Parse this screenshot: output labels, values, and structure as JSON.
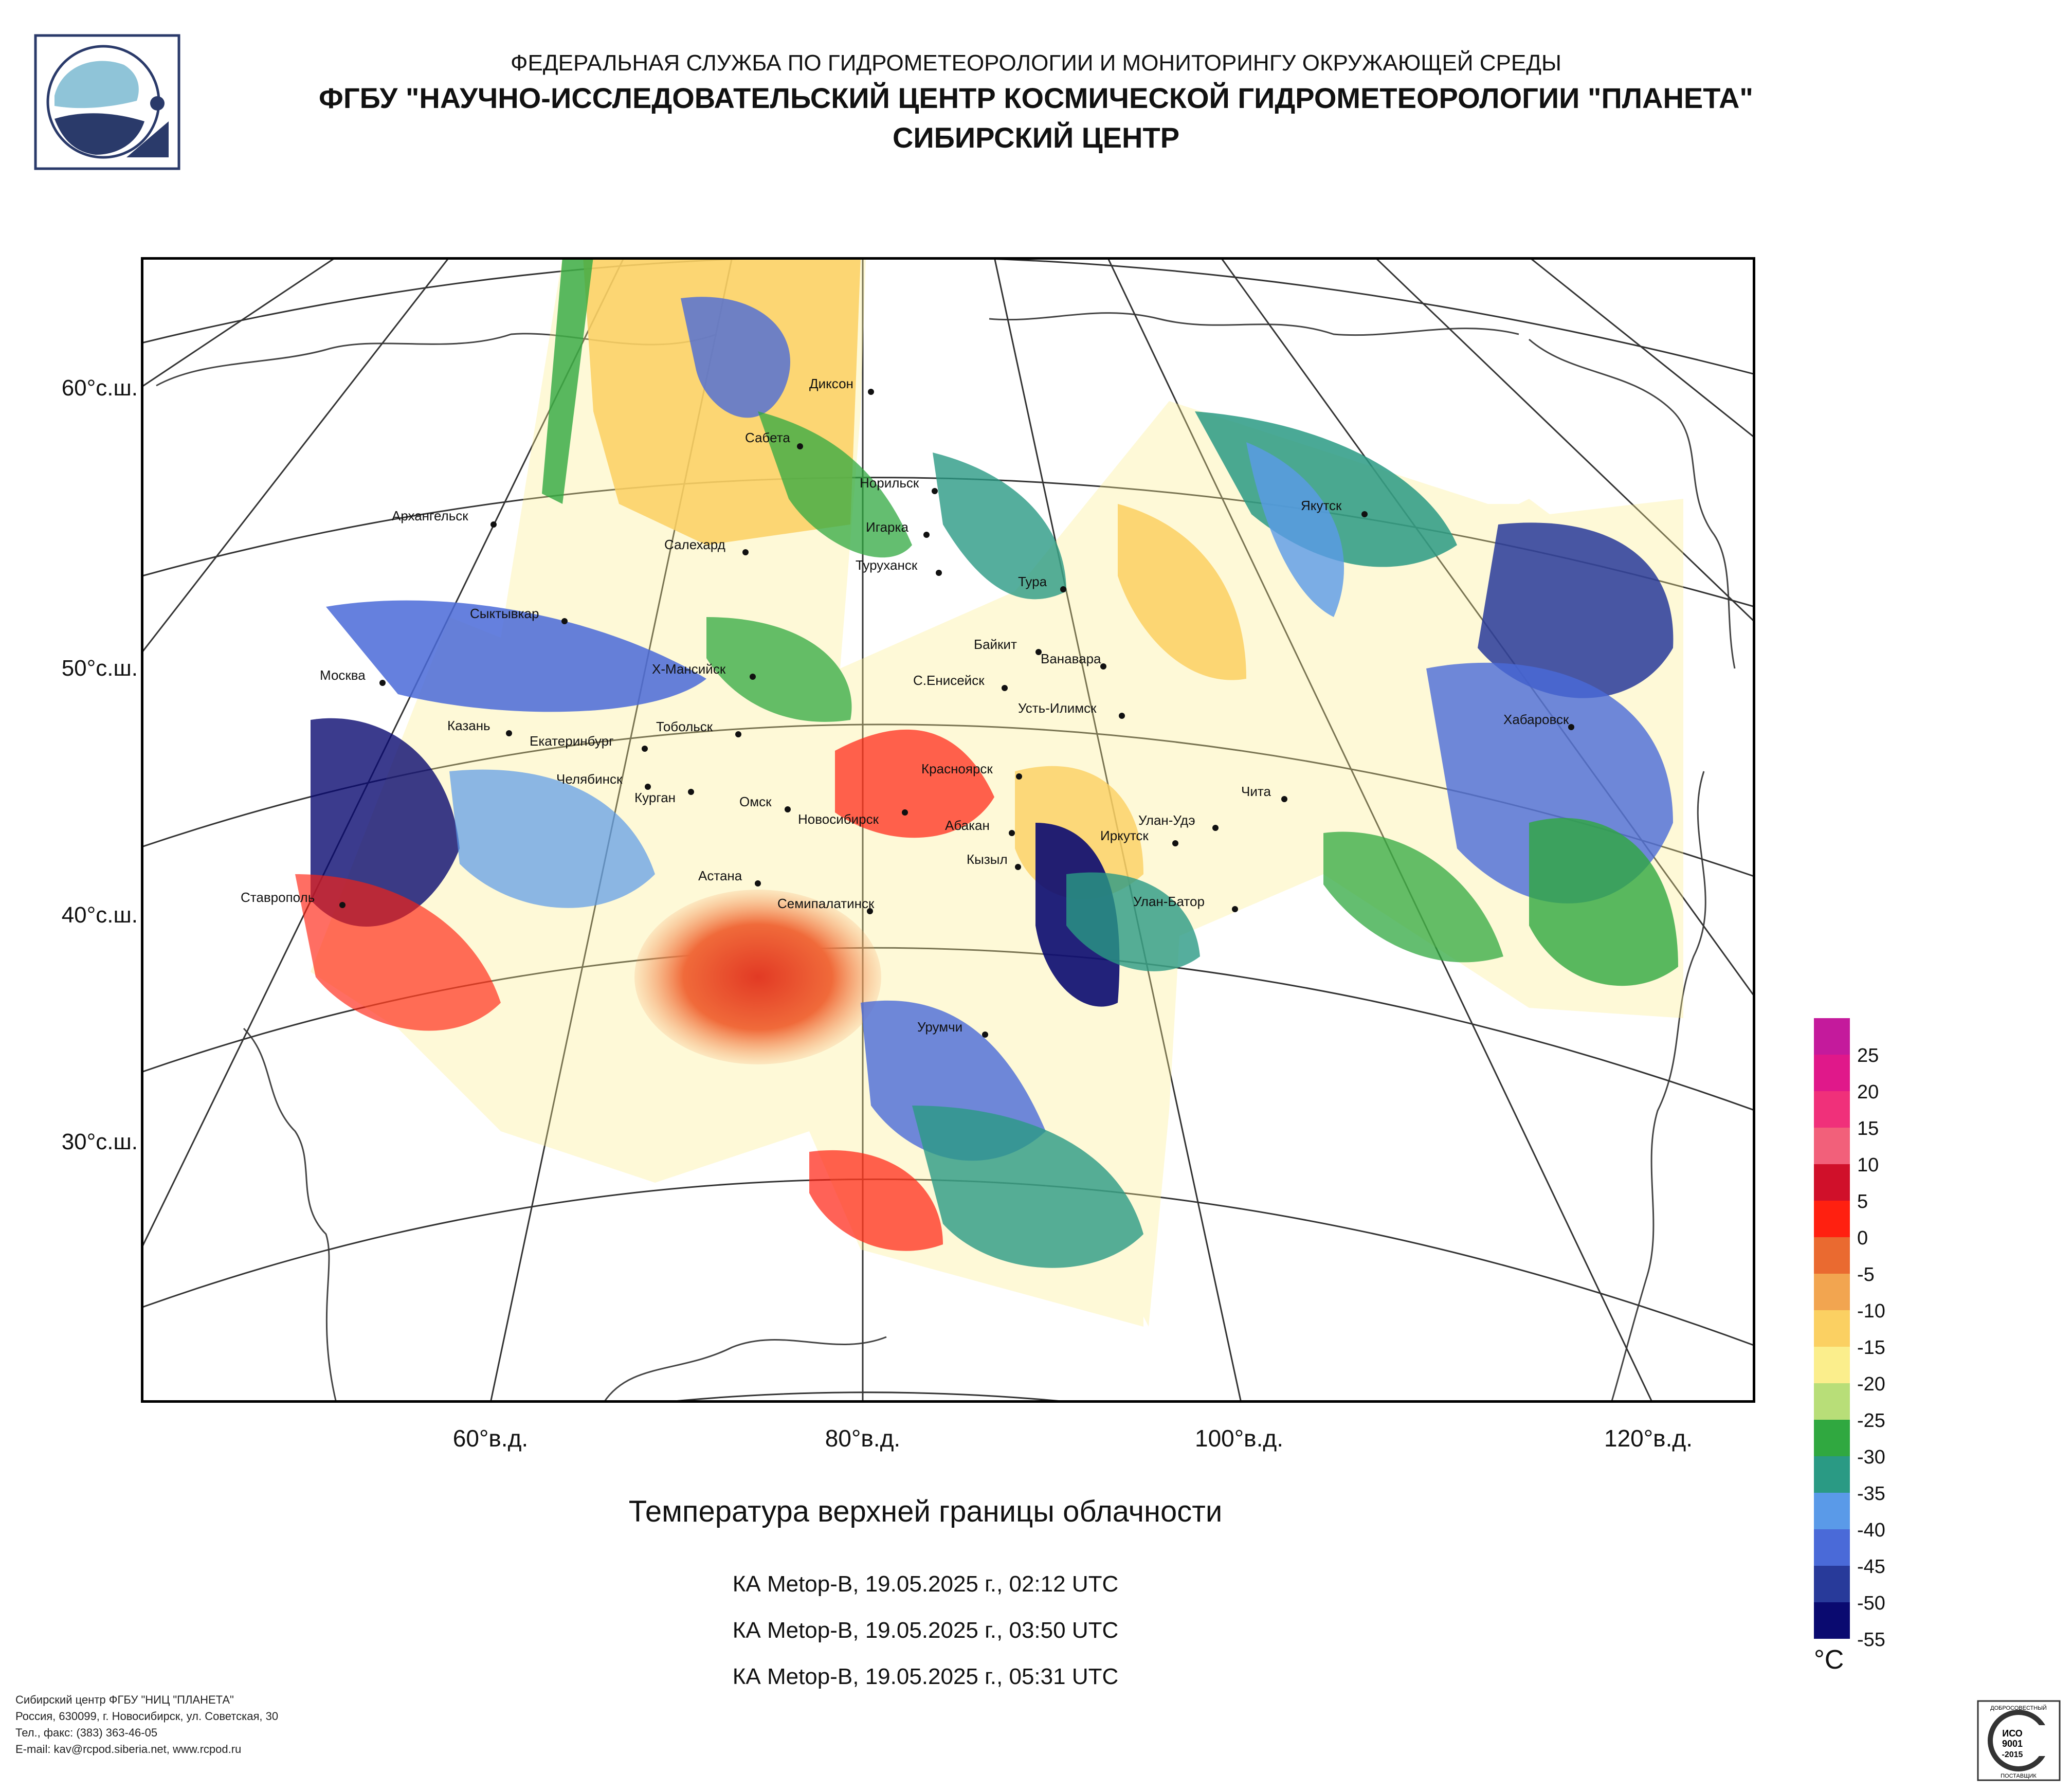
{
  "header": {
    "line1": "ФЕДЕРАЛЬНАЯ СЛУЖБА ПО ГИДРОМЕТЕОРОЛОГИИ И МОНИТОРИНГУ ОКРУЖАЮЩЕЙ СРЕДЫ",
    "line2": "ФГБУ \"НАУЧНО-ИССЛЕДОВАТЕЛЬСКИЙ ЦЕНТР КОСМИЧЕСКОЙ ГИДРОМЕТЕОРОЛОГИИ \"ПЛАНЕТА\"",
    "line3": "СИБИРСКИЙ ЦЕНТР"
  },
  "axes": {
    "lat_labels": [
      "60°с.ш.",
      "50°с.ш.",
      "40°с.ш.",
      "30°с.ш."
    ],
    "lon_labels": [
      "60°в.д.",
      "80°в.д.",
      "100°в.д.",
      "120°в.д."
    ]
  },
  "cities": [
    {
      "name": "Диксон"
    },
    {
      "name": "Сабета"
    },
    {
      "name": "Норильск"
    },
    {
      "name": "Якутск"
    },
    {
      "name": "Архангельск"
    },
    {
      "name": "Игарка"
    },
    {
      "name": "Салехард"
    },
    {
      "name": "Туруханск"
    },
    {
      "name": "Тура"
    },
    {
      "name": "Сыктывкар"
    },
    {
      "name": "Байкит"
    },
    {
      "name": "Ванавара"
    },
    {
      "name": "Москва"
    },
    {
      "name": "Х-Мансийск"
    },
    {
      "name": "С.Енисейск"
    },
    {
      "name": "Усть-Илимск"
    },
    {
      "name": "Хабаровск"
    },
    {
      "name": "Казань"
    },
    {
      "name": "Екатеринбург"
    },
    {
      "name": "Тобольск"
    },
    {
      "name": "Красноярск"
    },
    {
      "name": "Челябинск"
    },
    {
      "name": "Курган"
    },
    {
      "name": "Омск"
    },
    {
      "name": "Чита"
    },
    {
      "name": "Новосибирск"
    },
    {
      "name": "Абакан"
    },
    {
      "name": "Улан-Удэ"
    },
    {
      "name": "Иркутск"
    },
    {
      "name": "Кызыл"
    },
    {
      "name": "Астана"
    },
    {
      "name": "Ставрополь"
    },
    {
      "name": "Семипалатинск"
    },
    {
      "name": "Улан-Батор"
    },
    {
      "name": "Урумчи"
    }
  ],
  "title": "Температура верхней границы облачности",
  "passes": [
    "КА Metop-B, 19.05.2025 г., 02:12 UTC",
    "КА Metop-B, 19.05.2025 г., 03:50 UTC",
    "КА Metop-B, 19.05.2025 г., 05:31 UTC"
  ],
  "legend": {
    "unit": "°C",
    "labels": [
      "25",
      "20",
      "15",
      "10",
      "5",
      "0",
      "-5",
      "-10",
      "-15",
      "-20",
      "-25",
      "-30",
      "-35",
      "-40",
      "-45",
      "-50",
      "-55"
    ],
    "colors": [
      "#c41a9c",
      "#e0188a",
      "#f0307a",
      "#f2607a",
      "#d0102a",
      "#ff2010",
      "#ea6a30",
      "#f2a550",
      "#fbd062",
      "#fbee8c",
      "#b8de78",
      "#30a840",
      "#2a9a84",
      "#5a9ae8",
      "#4a6ad8",
      "#283a9a",
      "#0a0a70"
    ]
  },
  "footer": [
    "Сибирский центр ФГБУ \"НИЦ \"ПЛАНЕТА\"",
    "Россия, 630099, г. Новосибирск, ул. Советская, 30",
    "Тел., факс: (383) 363-46-05",
    "E-mail: kav@rcpod.siberia.net, www.rcpod.ru"
  ],
  "badge": {
    "top_text": "ДОБРОСОВЕСТНЫЙ",
    "line1": "ИСО",
    "line2": "9001",
    "line3": "-2015",
    "bottom_text": "ПОСТАВЩИК"
  }
}
